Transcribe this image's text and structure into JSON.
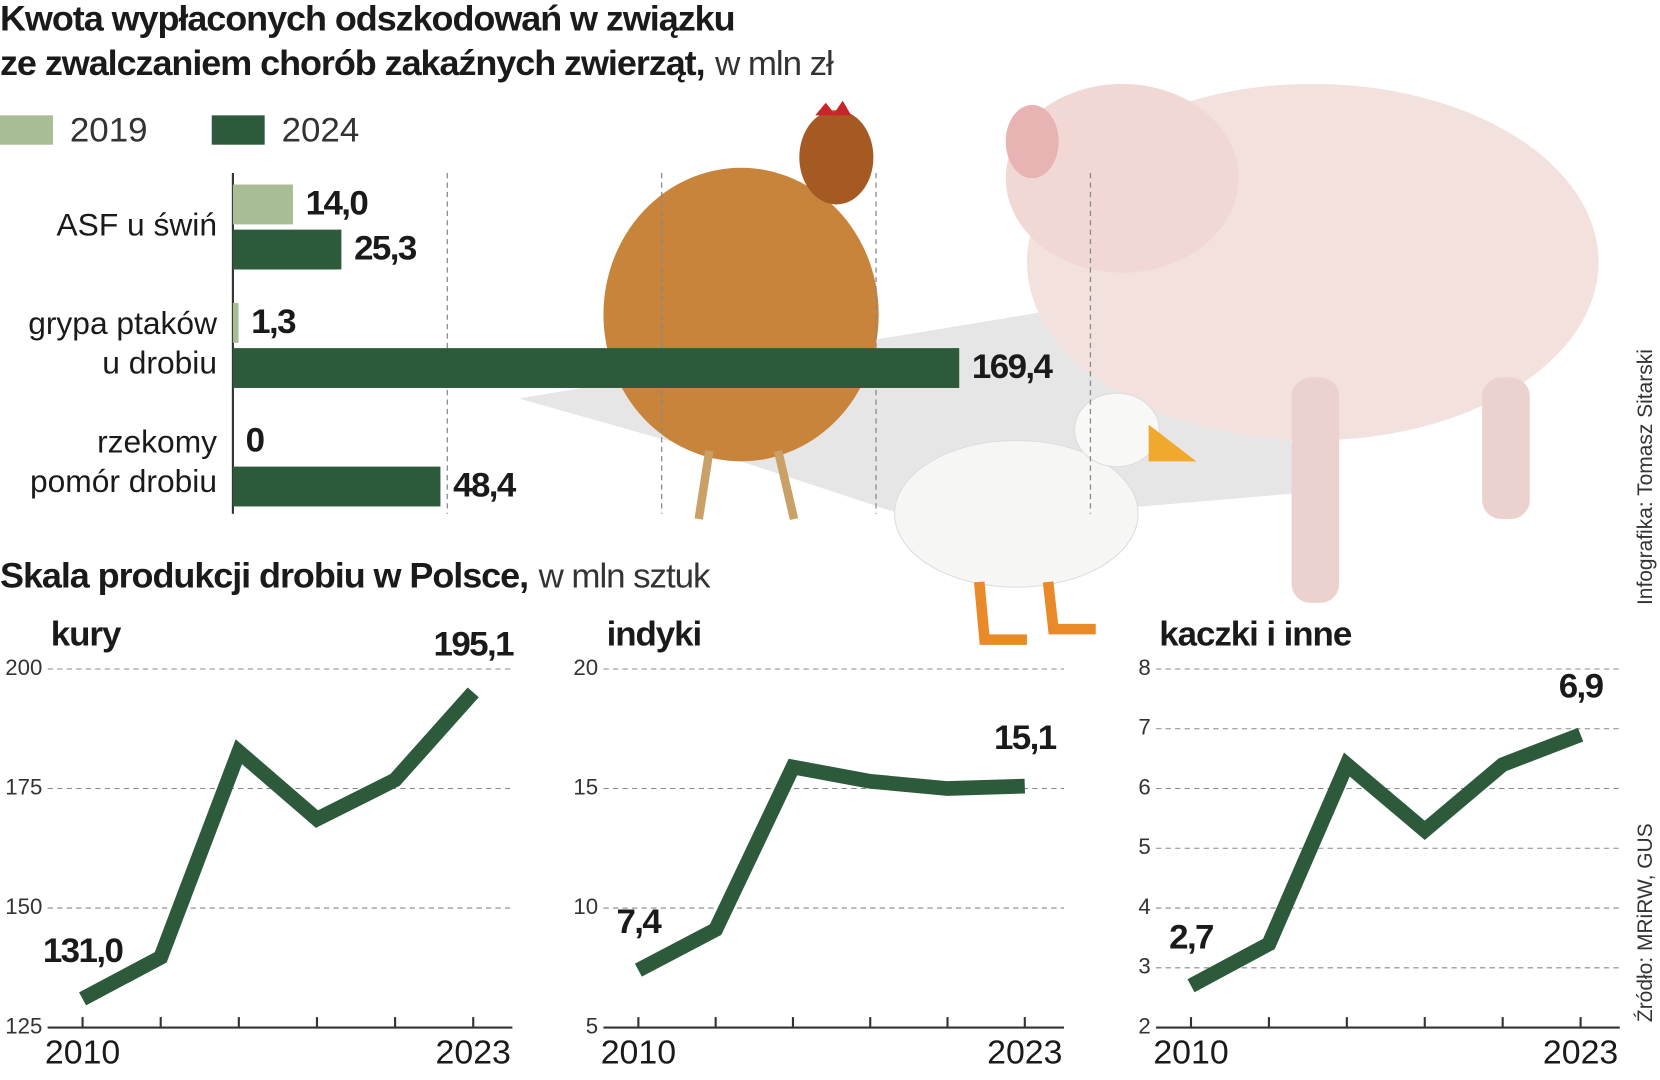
{
  "chart_data": [
    {
      "type": "hbar",
      "title": [
        "Kwota wypłaconych odszkodowań w związku",
        "ze zwalczaniem chorób zakaźnych zwierząt,"
      ],
      "subtitle": "w mln zł",
      "categories": [
        [
          "ASF u świń"
        ],
        [
          "grypa ptaków",
          "u drobiu"
        ],
        [
          "rzekomy",
          "pomór drobiu"
        ]
      ],
      "series": [
        {
          "name": "2019",
          "color": "#a8bd94",
          "values": [
            14.0,
            1.3,
            0
          ],
          "value_labels": [
            "14,0",
            "1,3",
            "0"
          ]
        },
        {
          "name": "2024",
          "color": "#2d5a3b",
          "values": [
            25.3,
            169.4,
            48.4
          ],
          "value_labels": [
            "25,3",
            "169,4",
            "48,4"
          ]
        }
      ],
      "xlim": [
        0,
        200
      ],
      "xticks": [
        0,
        50,
        100,
        150,
        200
      ],
      "grid": true
    },
    {
      "type": "line",
      "title": "kury",
      "categories": [
        "2010",
        null,
        null,
        null,
        null,
        "2023"
      ],
      "values": [
        131.0,
        139.7,
        182.7,
        168.6,
        176.8,
        195.1
      ],
      "value_labels": [
        "131,0",
        null,
        null,
        null,
        null,
        "195,1"
      ],
      "color": "#2d5a3b",
      "ylim": [
        125,
        200
      ],
      "yticks": [
        125,
        150,
        175,
        200
      ],
      "grid": true
    },
    {
      "type": "line",
      "title": "indyki",
      "categories": [
        "2010",
        null,
        null,
        null,
        null,
        "2023"
      ],
      "values": [
        7.4,
        9.1,
        15.9,
        15.3,
        15.0,
        15.1
      ],
      "value_labels": [
        "7,4",
        null,
        null,
        null,
        null,
        "15,1"
      ],
      "color": "#2d5a3b",
      "ylim": [
        5,
        20
      ],
      "yticks": [
        5,
        10,
        15,
        20
      ],
      "grid": true
    },
    {
      "type": "line",
      "title": "kaczki i inne",
      "categories": [
        "2010",
        null,
        null,
        null,
        null,
        "2023"
      ],
      "values": [
        2.7,
        3.4,
        6.4,
        5.3,
        6.4,
        6.9
      ],
      "value_labels": [
        "2,7",
        null,
        null,
        null,
        null,
        "6,9"
      ],
      "color": "#2d5a3b",
      "ylim": [
        2,
        8
      ],
      "yticks": [
        2,
        3,
        4,
        5,
        6,
        7,
        8
      ],
      "grid": true
    }
  ],
  "section_title": "Skala produkcji drobiu w Polsce,",
  "section_subtitle": "w mln sztuk",
  "credit": "Infografika: Tomasz Sitarski",
  "source": "Źródło: MRiRW, GUS"
}
